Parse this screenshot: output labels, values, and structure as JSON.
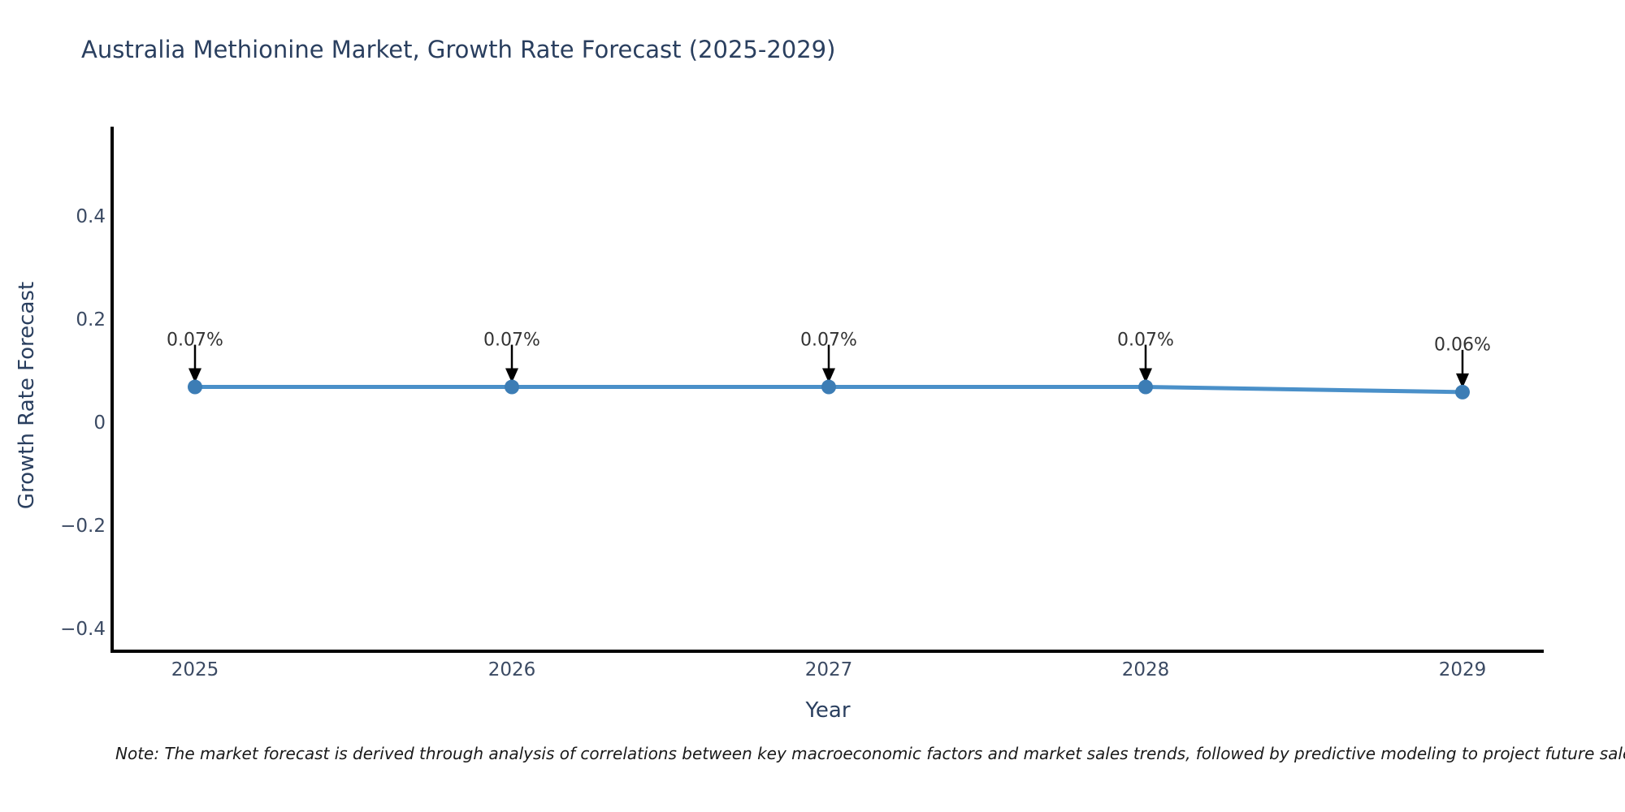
{
  "title": "Australia Methionine Market, Growth Rate Forecast (2025-2029)",
  "note": "Note: The market forecast is derived through analysis of correlations between key macroeconomic factors and market sales trends, followed by predictive modeling to project future sales",
  "colors": {
    "line": "#4a90c9",
    "marker": "#3c7db5",
    "axis": "#000000",
    "title_text": "#2a3f5f",
    "tick_text": "#3b4a63",
    "annotation_arrow": "#000000",
    "annotation_text": "#333333"
  },
  "chart_data": {
    "type": "line",
    "title": "Australia Methionine Market, Growth Rate Forecast (2025-2029)",
    "xlabel": "Year",
    "ylabel": "Growth Rate Forecast",
    "x": [
      2025,
      2026,
      2027,
      2028,
      2029
    ],
    "xtick_labels": [
      "2025",
      "2026",
      "2027",
      "2028",
      "2029"
    ],
    "series": [
      {
        "name": "Growth Rate Forecast",
        "values": [
          0.07,
          0.07,
          0.07,
          0.07,
          0.06
        ]
      }
    ],
    "point_labels": [
      "0.07%",
      "0.07%",
      "0.07%",
      "0.07%",
      "0.06%"
    ],
    "yticks": [
      0.4,
      0.2,
      0,
      -0.2,
      -0.4
    ],
    "ytick_labels": [
      "0.4",
      "0.2",
      "0",
      "−0.2",
      "−0.4"
    ],
    "ylim": [
      -0.5,
      0.57
    ],
    "grid": false,
    "legend_position": "none",
    "annotations": "value labels with downward arrows above each point"
  }
}
